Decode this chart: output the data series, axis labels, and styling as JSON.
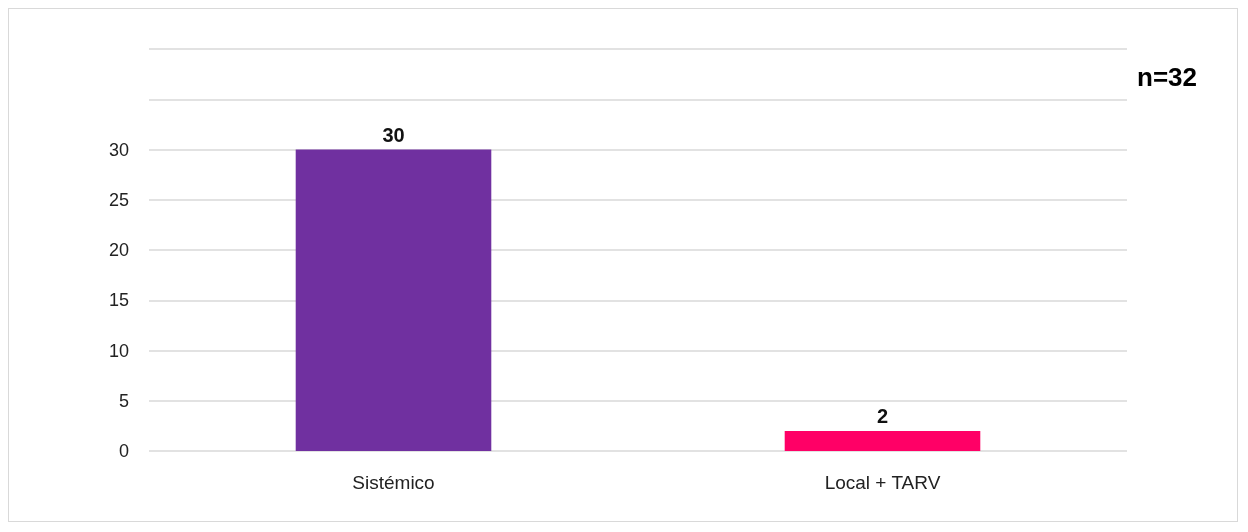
{
  "chart_data": {
    "type": "bar",
    "categories": [
      "Sistémico",
      "Local + TARV"
    ],
    "values": [
      30,
      2
    ],
    "colors": [
      "#7030a0",
      "#ff0066"
    ],
    "ylim": [
      0,
      40
    ],
    "yticks": [
      0,
      5,
      10,
      15,
      20,
      25,
      30,
      {
        "value": 35,
        "label": null
      },
      {
        "value": 40,
        "label": null
      }
    ],
    "grid": "y",
    "data_labels": true,
    "annotations": [
      "n=32"
    ]
  }
}
